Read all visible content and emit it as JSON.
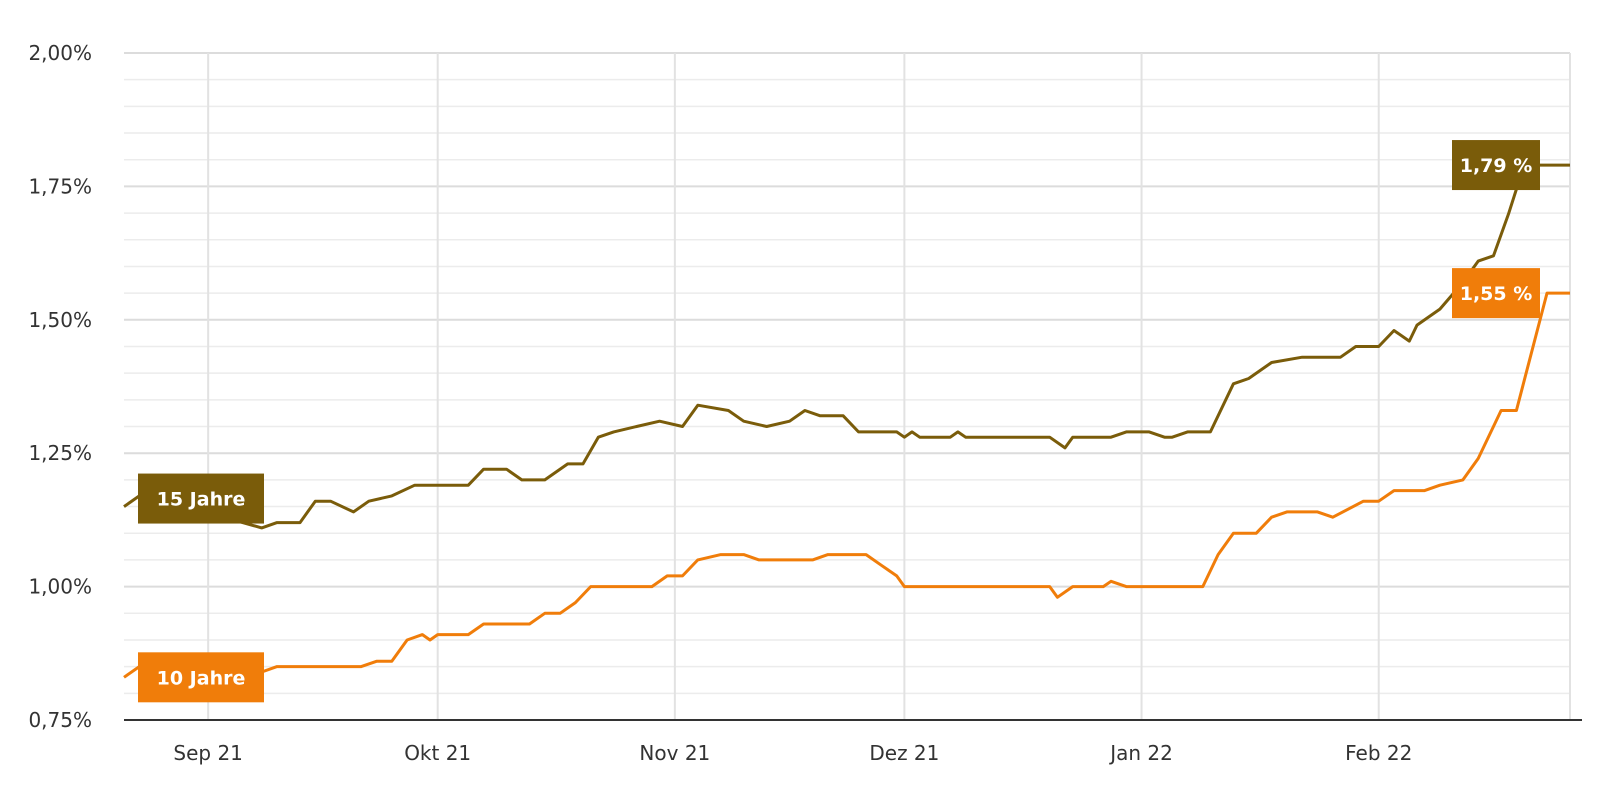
{
  "chart_data": {
    "type": "line",
    "title": "",
    "xlabel": "",
    "ylabel": "",
    "x_start": "2021-08-21",
    "x_end": "2022-02-26",
    "xlim": [
      "2021-08-21",
      "2022-02-26"
    ],
    "ylim": [
      0.75,
      2.0
    ],
    "grid": true,
    "legend": "inline labels at series start",
    "y_ticks": [
      {
        "value": 0.75,
        "label": "0,75%"
      },
      {
        "value": 1.0,
        "label": "1,00%"
      },
      {
        "value": 1.25,
        "label": "1,25%"
      },
      {
        "value": 1.5,
        "label": "1,50%"
      },
      {
        "value": 1.75,
        "label": "1,75%"
      },
      {
        "value": 2.0,
        "label": "2,00%"
      }
    ],
    "x_ticks": [
      {
        "date": "2021-09-01",
        "label": "Sep 21"
      },
      {
        "date": "2021-10-01",
        "label": "Okt 21"
      },
      {
        "date": "2021-11-01",
        "label": "Nov 21"
      },
      {
        "date": "2021-12-01",
        "label": "Dez 21"
      },
      {
        "date": "2022-01-01",
        "label": "Jan 22"
      },
      {
        "date": "2022-02-01",
        "label": "Feb 22"
      }
    ],
    "series": [
      {
        "name": "15 Jahre",
        "color": "#7a5c0a",
        "end_label": "1,79 %",
        "points": [
          [
            "2021-08-21",
            1.15
          ],
          [
            "2021-08-23",
            1.17
          ],
          [
            "2021-08-26",
            1.15
          ],
          [
            "2021-08-30",
            1.16
          ],
          [
            "2021-09-03",
            1.13
          ],
          [
            "2021-09-08",
            1.11
          ],
          [
            "2021-09-10",
            1.12
          ],
          [
            "2021-09-13",
            1.12
          ],
          [
            "2021-09-15",
            1.16
          ],
          [
            "2021-09-17",
            1.16
          ],
          [
            "2021-09-20",
            1.14
          ],
          [
            "2021-09-22",
            1.16
          ],
          [
            "2021-09-25",
            1.17
          ],
          [
            "2021-09-28",
            1.19
          ],
          [
            "2021-10-05",
            1.19
          ],
          [
            "2021-10-07",
            1.22
          ],
          [
            "2021-10-10",
            1.22
          ],
          [
            "2021-10-12",
            1.2
          ],
          [
            "2021-10-15",
            1.2
          ],
          [
            "2021-10-18",
            1.23
          ],
          [
            "2021-10-20",
            1.23
          ],
          [
            "2021-10-22",
            1.28
          ],
          [
            "2021-10-24",
            1.29
          ],
          [
            "2021-10-27",
            1.3
          ],
          [
            "2021-10-30",
            1.31
          ],
          [
            "2021-11-02",
            1.3
          ],
          [
            "2021-11-04",
            1.34
          ],
          [
            "2021-11-08",
            1.33
          ],
          [
            "2021-11-10",
            1.31
          ],
          [
            "2021-11-13",
            1.3
          ],
          [
            "2021-11-16",
            1.31
          ],
          [
            "2021-11-18",
            1.33
          ],
          [
            "2021-11-20",
            1.32
          ],
          [
            "2021-11-23",
            1.32
          ],
          [
            "2021-11-25",
            1.29
          ],
          [
            "2021-11-30",
            1.29
          ],
          [
            "2021-12-01",
            1.28
          ],
          [
            "2021-12-02",
            1.29
          ],
          [
            "2021-12-03",
            1.28
          ],
          [
            "2021-12-07",
            1.28
          ],
          [
            "2021-12-08",
            1.29
          ],
          [
            "2021-12-09",
            1.28
          ],
          [
            "2021-12-20",
            1.28
          ],
          [
            "2021-12-22",
            1.26
          ],
          [
            "2021-12-23",
            1.28
          ],
          [
            "2021-12-28",
            1.28
          ],
          [
            "2021-12-30",
            1.29
          ],
          [
            "2022-01-02",
            1.29
          ],
          [
            "2022-01-04",
            1.28
          ],
          [
            "2022-01-05",
            1.28
          ],
          [
            "2022-01-07",
            1.29
          ],
          [
            "2022-01-10",
            1.29
          ],
          [
            "2022-01-13",
            1.38
          ],
          [
            "2022-01-15",
            1.39
          ],
          [
            "2022-01-18",
            1.42
          ],
          [
            "2022-01-22",
            1.43
          ],
          [
            "2022-01-27",
            1.43
          ],
          [
            "2022-01-29",
            1.45
          ],
          [
            "2022-02-01",
            1.45
          ],
          [
            "2022-02-03",
            1.48
          ],
          [
            "2022-02-05",
            1.46
          ],
          [
            "2022-02-06",
            1.49
          ],
          [
            "2022-02-09",
            1.52
          ],
          [
            "2022-02-12",
            1.57
          ],
          [
            "2022-02-14",
            1.61
          ],
          [
            "2022-02-16",
            1.62
          ],
          [
            "2022-02-18",
            1.7
          ],
          [
            "2022-02-20",
            1.79
          ],
          [
            "2022-02-26",
            1.79
          ]
        ]
      },
      {
        "name": "10 Jahre",
        "color": "#f07d0a",
        "end_label": "1,55 %",
        "points": [
          [
            "2021-08-21",
            0.83
          ],
          [
            "2021-08-23",
            0.85
          ],
          [
            "2021-08-26",
            0.84
          ],
          [
            "2021-09-01",
            0.85
          ],
          [
            "2021-09-05",
            0.85
          ],
          [
            "2021-09-08",
            0.84
          ],
          [
            "2021-09-10",
            0.85
          ],
          [
            "2021-09-21",
            0.85
          ],
          [
            "2021-09-23",
            0.86
          ],
          [
            "2021-09-25",
            0.86
          ],
          [
            "2021-09-27",
            0.9
          ],
          [
            "2021-09-29",
            0.91
          ],
          [
            "2021-09-30",
            0.9
          ],
          [
            "2021-10-01",
            0.91
          ],
          [
            "2021-10-05",
            0.91
          ],
          [
            "2021-10-07",
            0.93
          ],
          [
            "2021-10-13",
            0.93
          ],
          [
            "2021-10-15",
            0.95
          ],
          [
            "2021-10-17",
            0.95
          ],
          [
            "2021-10-19",
            0.97
          ],
          [
            "2021-10-21",
            1.0
          ],
          [
            "2021-10-29",
            1.0
          ],
          [
            "2021-10-31",
            1.02
          ],
          [
            "2021-11-02",
            1.02
          ],
          [
            "2021-11-04",
            1.05
          ],
          [
            "2021-11-07",
            1.06
          ],
          [
            "2021-11-10",
            1.06
          ],
          [
            "2021-11-12",
            1.05
          ],
          [
            "2021-11-19",
            1.05
          ],
          [
            "2021-11-21",
            1.06
          ],
          [
            "2021-11-26",
            1.06
          ],
          [
            "2021-11-28",
            1.04
          ],
          [
            "2021-11-30",
            1.02
          ],
          [
            "2021-12-01",
            1.0
          ],
          [
            "2021-12-20",
            1.0
          ],
          [
            "2021-12-21",
            0.98
          ],
          [
            "2021-12-23",
            1.0
          ],
          [
            "2021-12-27",
            1.0
          ],
          [
            "2021-12-28",
            1.01
          ],
          [
            "2021-12-30",
            1.0
          ],
          [
            "2022-01-09",
            1.0
          ],
          [
            "2022-01-11",
            1.06
          ],
          [
            "2022-01-13",
            1.1
          ],
          [
            "2022-01-16",
            1.1
          ],
          [
            "2022-01-18",
            1.13
          ],
          [
            "2022-01-20",
            1.14
          ],
          [
            "2022-01-24",
            1.14
          ],
          [
            "2022-01-26",
            1.13
          ],
          [
            "2022-01-30",
            1.16
          ],
          [
            "2022-02-01",
            1.16
          ],
          [
            "2022-02-03",
            1.18
          ],
          [
            "2022-02-07",
            1.18
          ],
          [
            "2022-02-09",
            1.19
          ],
          [
            "2022-02-12",
            1.2
          ],
          [
            "2022-02-14",
            1.24
          ],
          [
            "2022-02-17",
            1.33
          ],
          [
            "2022-02-19",
            1.33
          ],
          [
            "2022-02-23",
            1.55
          ],
          [
            "2022-02-26",
            1.55
          ]
        ]
      }
    ]
  }
}
